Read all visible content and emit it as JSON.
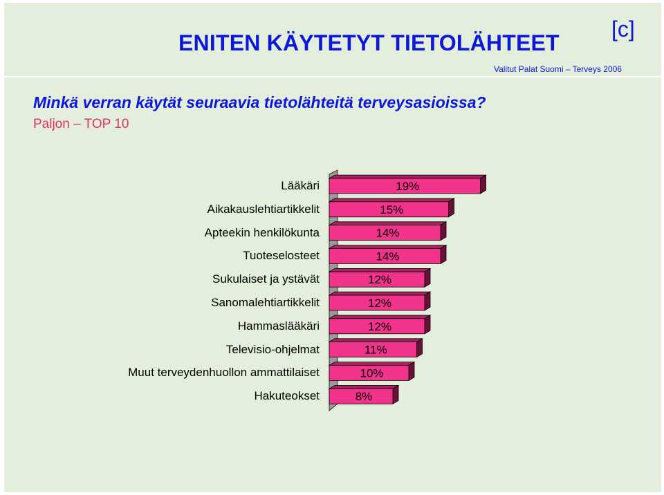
{
  "header": {
    "title": "ENITEN KÄYTETYT TIETOLÄHTEET",
    "brand": "[c]",
    "source": "Valitut Palat Suomi – Terveys 2006"
  },
  "question": "Minkä verran käytät seuraavia tietolähteitä terveysasioissa?",
  "subtitle": "Paljon – TOP 10",
  "colors": {
    "bar": "#f2338c",
    "bar_shadow": "#6a0f35",
    "text_blue": "#0d17d8",
    "subtitle_pink": "#e0306a",
    "background": "#e3efdc"
  },
  "chart_data": {
    "type": "bar",
    "orientation": "horizontal",
    "categories": [
      "Lääkäri",
      "Aikakauslehtiartikkelit",
      "Apteekin henkilökunta",
      "Tuoteselosteet",
      "Sukulaiset ja ystävät",
      "Sanomalehtiartikkelit",
      "Hammaslääkäri",
      "Televisio-ohjelmat",
      "Muut terveydenhuollon ammattilaiset",
      "Hakuteokset"
    ],
    "values": [
      19,
      15,
      14,
      14,
      12,
      12,
      12,
      11,
      10,
      8
    ],
    "value_labels": [
      "19%",
      "15%",
      "14%",
      "14%",
      "12%",
      "12%",
      "12%",
      "11%",
      "10%",
      "8%"
    ],
    "title": "ENITEN KÄYTETYT TIETOLÄHTEET",
    "grid": false,
    "legend": "none"
  }
}
